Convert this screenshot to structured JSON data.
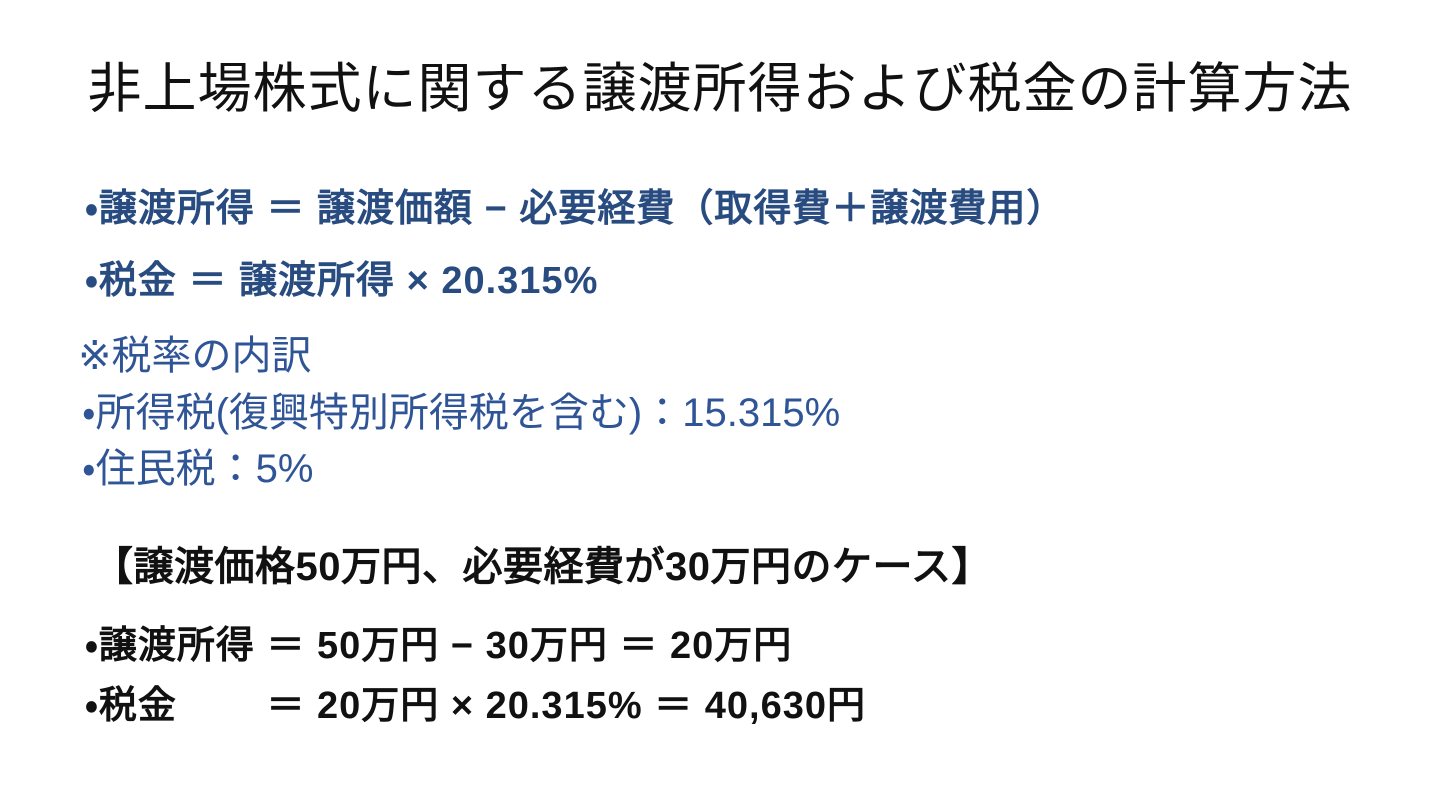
{
  "slide": {
    "title": "非上場株式に関する譲渡所得および税金の計算方法",
    "formulas": {
      "income_formula": "・譲渡所得 ＝ 譲渡価額 − 必要経費（取得費＋譲渡費用）",
      "tax_formula": "・税金 ＝ 譲渡所得 × 20.315%"
    },
    "tax_rate_note": {
      "heading": "※税率の内訳",
      "income_tax_item": "・所得税(復興特別所得税を含む)：15.315%",
      "resident_tax_item": "・住民税：5%"
    },
    "example": {
      "heading": "【譲渡価格50万円、必要経費が30万円のケース】",
      "income_calc_line": "・譲渡所得 ＝ 50万円 − 30万円 ＝ 20万円",
      "tax_calc_line": "・税金　　 ＝ 20万円 × 20.315% ＝ 40,630円"
    },
    "values": {
      "total_tax_rate": "20.315%",
      "income_tax_rate": "15.315%",
      "resident_tax_rate": "5%",
      "transfer_price": "50万円",
      "expenses": "30万円",
      "transfer_income": "20万円",
      "tax_amount": "40,630円"
    },
    "colors": {
      "formula_blue": "#284B80",
      "note_blue": "#2F5597",
      "text_black": "#111111",
      "background": "#FFFFFF"
    }
  }
}
